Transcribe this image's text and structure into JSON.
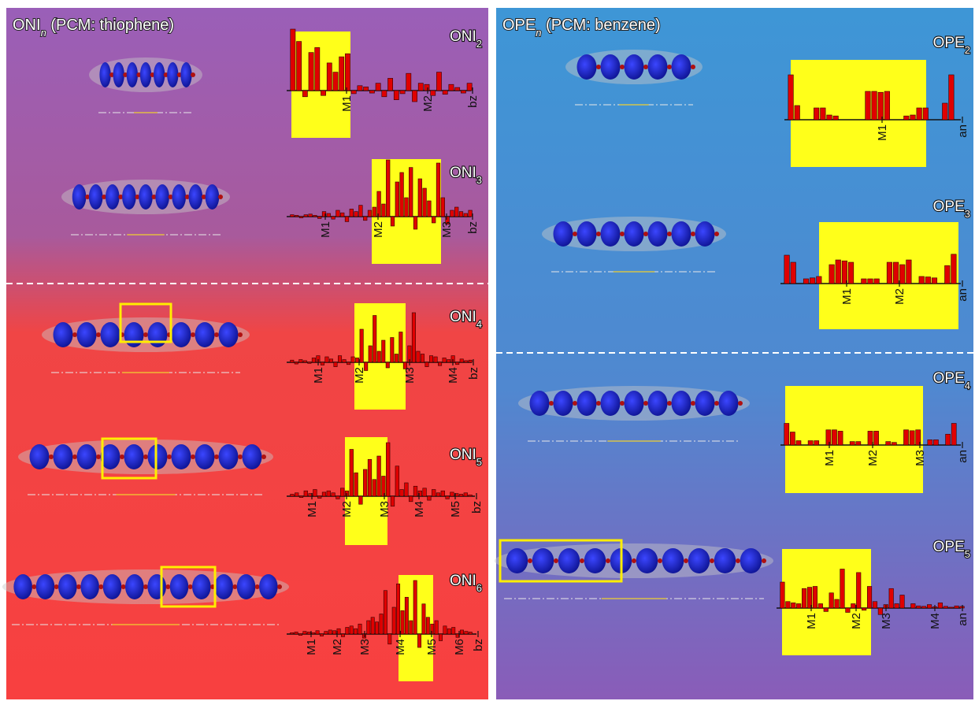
{
  "panels": [
    {
      "title": {
        "name": "ONI",
        "sub": "n",
        "rest": " (PCM: thiophene)"
      },
      "plots": [
        {
          "label": {
            "name": "ONI",
            "sub": "2"
          },
          "ticks": [
            "M1",
            "M2",
            "bz"
          ],
          "bars": [
            100,
            80,
            -10,
            62,
            70,
            -8,
            45,
            30,
            55,
            60,
            -5,
            8,
            6,
            -4,
            12,
            -10,
            20,
            -15,
            -5,
            28,
            -18,
            12,
            10,
            -8,
            30,
            -6,
            10,
            5,
            -4,
            12
          ]
        },
        {
          "label": {
            "name": "ONI",
            "sub": "3"
          },
          "ticks": [
            "M1",
            "M2",
            "M3",
            "bz"
          ],
          "bars": [
            3,
            2,
            -2,
            3,
            4,
            2,
            -3,
            8,
            5,
            -4,
            10,
            6,
            -8,
            12,
            8,
            18,
            -6,
            10,
            15,
            40,
            20,
            90,
            -15,
            55,
            70,
            30,
            78,
            -20,
            60,
            45,
            25,
            -10,
            85,
            30,
            -12,
            10,
            15,
            8,
            5,
            10
          ]
        },
        {
          "label": {
            "name": "ONI",
            "sub": "4"
          },
          "ticks": [
            "M1",
            "M2",
            "M3",
            "M4",
            "bz"
          ],
          "bars": [
            4,
            -3,
            5,
            3,
            -2,
            8,
            12,
            -5,
            10,
            6,
            -8,
            12,
            5,
            -4,
            10,
            8,
            60,
            -15,
            30,
            85,
            20,
            40,
            -10,
            45,
            15,
            55,
            -12,
            30,
            90,
            20,
            15,
            -8,
            12,
            10,
            -6,
            8,
            5,
            12,
            -4,
            6,
            3,
            4
          ]
        },
        {
          "label": {
            "name": "ONI",
            "sub": "5"
          },
          "ticks": [
            "M1",
            "M2",
            "M3",
            "M4",
            "M5",
            "bz"
          ],
          "bars": [
            3,
            5,
            -2,
            8,
            4,
            10,
            -3,
            6,
            8,
            5,
            -4,
            12,
            8,
            70,
            35,
            -12,
            40,
            55,
            25,
            60,
            30,
            80,
            -15,
            45,
            10,
            20,
            -8,
            15,
            8,
            12,
            -6,
            10,
            5,
            8,
            -4,
            6,
            4,
            3,
            5,
            2
          ]
        },
        {
          "label": {
            "name": "ONI",
            "sub": "6"
          },
          "ticks": [
            "M1",
            "M2",
            "M3",
            "M4",
            "M5",
            "M6",
            "bz"
          ],
          "bars": [
            2,
            3,
            -2,
            4,
            3,
            2,
            5,
            -3,
            4,
            6,
            5,
            8,
            -4,
            10,
            12,
            8,
            15,
            -6,
            20,
            25,
            18,
            30,
            65,
            -15,
            40,
            75,
            35,
            55,
            20,
            80,
            -20,
            45,
            25,
            15,
            20,
            -10,
            12,
            8,
            10,
            -5,
            6,
            4,
            3
          ]
        }
      ]
    },
    {
      "title": {
        "name": "OPE",
        "sub": "n",
        "rest": " (PCM: benzene)"
      },
      "plots": [
        {
          "label": {
            "name": "OPE",
            "sub": "2"
          },
          "ticks": [
            "M1",
            "an"
          ],
          "bars": [
            95,
            30,
            0,
            0,
            25,
            25,
            10,
            8,
            0,
            0,
            0,
            0,
            60,
            60,
            58,
            60,
            0,
            0,
            8,
            10,
            25,
            25,
            0,
            0,
            35,
            95
          ]
        },
        {
          "label": {
            "name": "OPE",
            "sub": "3"
          },
          "ticks": [
            "M1",
            "M2",
            "an"
          ],
          "bars": [
            60,
            45,
            0,
            10,
            12,
            15,
            0,
            40,
            50,
            48,
            45,
            0,
            10,
            10,
            10,
            0,
            45,
            45,
            40,
            50,
            0,
            15,
            14,
            12,
            0,
            38,
            62
          ]
        },
        {
          "label": {
            "name": "OPE",
            "sub": "4"
          },
          "ticks": [
            "M1",
            "M2",
            "M3",
            "an"
          ],
          "bars": [
            50,
            30,
            10,
            0,
            10,
            10,
            0,
            35,
            35,
            32,
            0,
            8,
            8,
            0,
            32,
            32,
            0,
            8,
            6,
            0,
            35,
            33,
            35,
            0,
            12,
            12,
            0,
            25,
            50
          ]
        },
        {
          "label": {
            "name": "OPE",
            "sub": "5"
          },
          "ticks": [
            "M1",
            "M2",
            "M3",
            "M4",
            "an"
          ],
          "bars": [
            60,
            15,
            12,
            10,
            45,
            48,
            50,
            10,
            -8,
            35,
            20,
            90,
            -10,
            10,
            82,
            -5,
            50,
            15,
            -15,
            8,
            45,
            10,
            30,
            0,
            10,
            5,
            4,
            8,
            3,
            12,
            4,
            2,
            5,
            4
          ]
        }
      ]
    }
  ]
}
